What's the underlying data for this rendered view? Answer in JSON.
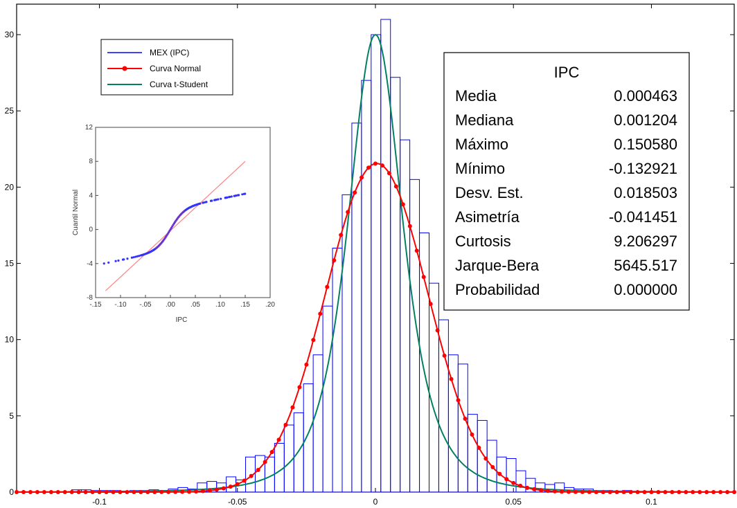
{
  "chart_data": [
    {
      "type": "bar",
      "xlim": [
        -0.13,
        0.13
      ],
      "ylim": [
        0,
        32
      ],
      "x_ticks": [
        -0.1,
        -0.05,
        0,
        0.05,
        0.1
      ],
      "y_ticks": [
        0,
        5,
        10,
        15,
        20,
        25,
        30
      ],
      "bin_width": 0.0035,
      "histogram": {
        "name": "MEX (IPC)",
        "color": "#0000ff",
        "centers": [
          -0.1083,
          -0.1048,
          -0.1013,
          -0.0978,
          -0.0943,
          -0.0908,
          -0.0873,
          -0.0838,
          -0.0803,
          -0.0768,
          -0.0733,
          -0.0698,
          -0.0663,
          -0.0628,
          -0.0593,
          -0.0558,
          -0.0523,
          -0.0488,
          -0.0453,
          -0.0418,
          -0.0383,
          -0.0348,
          -0.0313,
          -0.0278,
          -0.0243,
          -0.0208,
          -0.0173,
          -0.0138,
          -0.0103,
          -0.0068,
          -0.0033,
          0.0002,
          0.0037,
          0.0072,
          0.0107,
          0.0142,
          0.0177,
          0.0212,
          0.0247,
          0.0282,
          0.0317,
          0.0352,
          0.0387,
          0.0422,
          0.0457,
          0.0492,
          0.0527,
          0.0562,
          0.0597,
          0.0632,
          0.0667,
          0.0702,
          0.0737,
          0.0772,
          0.0807,
          0.0842,
          0.0877,
          0.0912
        ],
        "values": [
          0.15,
          0.15,
          0.1,
          0.1,
          0.1,
          0.05,
          0.1,
          0.1,
          0.15,
          0.1,
          0.2,
          0.3,
          0.2,
          0.6,
          0.7,
          0.6,
          1.0,
          0.8,
          2.3,
          2.4,
          2.3,
          3.2,
          4.4,
          5.2,
          7.1,
          9.0,
          12.2,
          16.0,
          19.5,
          24.2,
          27.0,
          30.0,
          31.0,
          27.2,
          23.1,
          20.5,
          17.0,
          13.7,
          11.3,
          9.0,
          8.4,
          5.1,
          4.7,
          3.4,
          2.3,
          2.2,
          1.4,
          0.9,
          0.6,
          0.5,
          0.6,
          0.3,
          0.2,
          0.2,
          0.1,
          0.1,
          0.05,
          0.1
        ]
      },
      "normal_curve": {
        "name": "Curva Normal",
        "color": "#ff0000",
        "mean": 0.000463,
        "std": 0.018503
      },
      "t_curve": {
        "name": "Curva t-Student",
        "color": "#008060",
        "peak_x": 0.0,
        "peak_y": 30.0
      },
      "legend_position": "top-left",
      "grid": false
    },
    {
      "type": "scatter",
      "role": "inset",
      "xlabel": "IPC",
      "ylabel": "Cuantil Normal",
      "xlim": [
        -0.15,
        0.2
      ],
      "ylim": [
        -8,
        12
      ],
      "x_tick_labels": [
        "-.15",
        "-.10",
        "-.05",
        ".00",
        ".05",
        ".10",
        ".15",
        ".20"
      ],
      "y_tick_labels": [
        "12",
        "8",
        "4",
        "0",
        "-4",
        "-8"
      ],
      "reference_line": {
        "x": [
          -0.13,
          0.15
        ],
        "y": [
          -7.2,
          8.0
        ],
        "color": "#ff8080"
      },
      "points_color": "#3333ff"
    }
  ],
  "stats_table": {
    "title": "IPC",
    "rows": [
      {
        "label": "Media",
        "value": "0.000463"
      },
      {
        "label": "Mediana",
        "value": "0.001204"
      },
      {
        "label": "Máximo",
        "value": "0.150580"
      },
      {
        "label": "Mínimo",
        "value": "-0.132921"
      },
      {
        "label": "Desv. Est.",
        "value": "0.018503"
      },
      {
        "label": "Asimetría",
        "value": "-0.041451"
      },
      {
        "label": "Curtosis",
        "value": "9.206297"
      },
      {
        "label": "Jarque-Bera",
        "value": "5645.517"
      },
      {
        "label": "Probabilidad",
        "value": "0.000000"
      }
    ]
  }
}
